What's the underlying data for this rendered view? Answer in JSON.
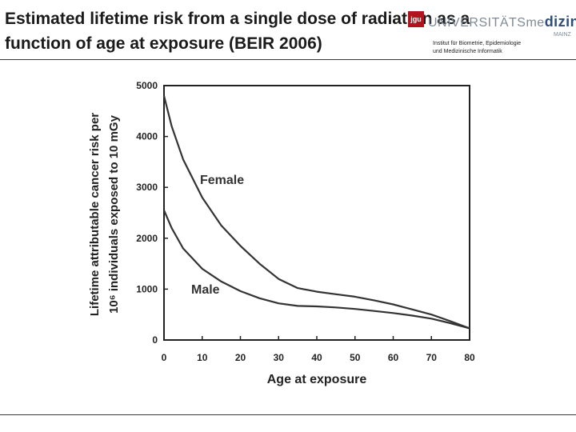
{
  "slide": {
    "title_line1": "Estimated lifetime risk from a single dose of radiation as a",
    "title_line2": "function of age at exposure (BEIR 2006)"
  },
  "branding": {
    "mark": "jgu",
    "word_prefix": "UNIVERSITÄTSme",
    "word_accent": "dizin.",
    "sub": "MAINZ",
    "institute_line1": "Institut für Biometrie, Epidemiologie",
    "institute_line2": "und Medizinische Informatik",
    "mark_color": "#b3121f",
    "accent_color": "#2f4d79"
  },
  "chart_data": {
    "type": "line",
    "xlabel": "Age at exposure",
    "ylabel_line1": "Lifetime attributable cancer risk per",
    "ylabel_line2": "10⁶ individuals exposed to 10 mGy",
    "xlim": [
      0,
      80
    ],
    "ylim": [
      0,
      5000
    ],
    "xticks": [
      "0",
      "10",
      "20",
      "30",
      "40",
      "50",
      "60",
      "70",
      "80"
    ],
    "yticks": [
      "0",
      "1000",
      "2000",
      "3000",
      "4000",
      "5000"
    ],
    "grid": false,
    "series": [
      {
        "name": "Female",
        "color": "#333333",
        "points": [
          [
            0,
            4800
          ],
          [
            2,
            4200
          ],
          [
            5,
            3550
          ],
          [
            10,
            2800
          ],
          [
            15,
            2250
          ],
          [
            20,
            1850
          ],
          [
            25,
            1500
          ],
          [
            30,
            1200
          ],
          [
            35,
            1020
          ],
          [
            40,
            950
          ],
          [
            45,
            900
          ],
          [
            50,
            850
          ],
          [
            55,
            780
          ],
          [
            60,
            700
          ],
          [
            65,
            600
          ],
          [
            70,
            500
          ],
          [
            75,
            370
          ],
          [
            80,
            230
          ]
        ]
      },
      {
        "name": "Male",
        "color": "#333333",
        "points": [
          [
            0,
            2550
          ],
          [
            2,
            2200
          ],
          [
            5,
            1800
          ],
          [
            10,
            1400
          ],
          [
            15,
            1150
          ],
          [
            20,
            960
          ],
          [
            25,
            820
          ],
          [
            30,
            720
          ],
          [
            35,
            670
          ],
          [
            40,
            660
          ],
          [
            45,
            640
          ],
          [
            50,
            610
          ],
          [
            55,
            570
          ],
          [
            60,
            530
          ],
          [
            65,
            480
          ],
          [
            70,
            420
          ],
          [
            75,
            330
          ],
          [
            80,
            230
          ]
        ]
      }
    ]
  }
}
